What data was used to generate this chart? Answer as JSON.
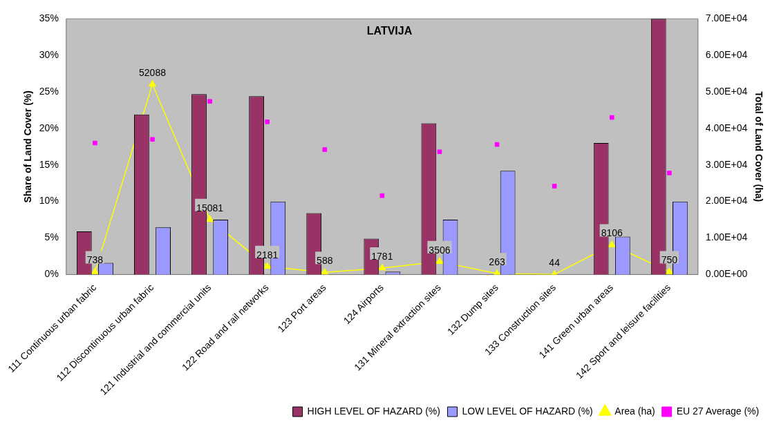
{
  "chart_data": {
    "type": "bar",
    "title": "LATVIJA",
    "ylabel": "Share of Land Cover (%)",
    "y2label": "Total of Land Cover (ha)",
    "categories": [
      "111 Continuous urban fabric",
      "112 Discontinuous urban fabric",
      "121 Industrial and commercial units",
      "122 Road and rail networks",
      "123 Port areas",
      "124 Airports",
      "131 Mineral extraction sites",
      "132 Dump sites",
      "133 Construction sites",
      "141 Green urban areas",
      "142 Sport and leisure facilities"
    ],
    "series": [
      {
        "name": "HIGH LEVEL OF HAZARD (%)",
        "color": "#993366",
        "values": [
          5.9,
          21.9,
          24.7,
          24.4,
          8.4,
          4.9,
          20.7,
          null,
          null,
          18.0,
          35.0
        ]
      },
      {
        "name": "LOW LEVEL OF HAZARD (%)",
        "color": "#9999ff",
        "values": [
          1.6,
          6.5,
          7.5,
          10.0,
          null,
          0.4,
          7.5,
          14.2,
          null,
          5.2,
          10.0
        ]
      },
      {
        "name": "Area (ha)",
        "type": "line",
        "axis": "y2",
        "color": "#ffff00",
        "marker": "triangle",
        "values": [
          738,
          52088,
          15081,
          2181,
          588,
          1781,
          3506,
          263,
          44,
          8106,
          750
        ],
        "value_labels": [
          "738",
          "52088",
          "15081",
          "2181",
          "588",
          "1781",
          "3506",
          "263",
          "44",
          "8106",
          "750"
        ]
      },
      {
        "name": "EU 27 Average (%)",
        "type": "scatter",
        "color": "#ff00ff",
        "marker": "square",
        "values": [
          18.0,
          18.5,
          23.7,
          20.9,
          17.1,
          10.8,
          16.8,
          17.8,
          12.1,
          21.5,
          13.9
        ]
      }
    ],
    "ylim": [
      0,
      35
    ],
    "yticks": [
      {
        "value": 0,
        "label": "0%"
      },
      {
        "value": 5,
        "label": "5%"
      },
      {
        "value": 10,
        "label": "10%"
      },
      {
        "value": 15,
        "label": "15%"
      },
      {
        "value": 20,
        "label": "20%"
      },
      {
        "value": 25,
        "label": "25%"
      },
      {
        "value": 30,
        "label": "30%"
      },
      {
        "value": 35,
        "label": "35%"
      }
    ],
    "y2lim": [
      0,
      70000
    ],
    "y2ticks": [
      {
        "value": 0,
        "label": "0.00E+00"
      },
      {
        "value": 10000,
        "label": "1.00E+04"
      },
      {
        "value": 20000,
        "label": "2.00E+04"
      },
      {
        "value": 30000,
        "label": "3.00E+04"
      },
      {
        "value": 40000,
        "label": "4.00E+04"
      },
      {
        "value": 50000,
        "label": "5.00E+04"
      },
      {
        "value": 60000,
        "label": "6.00E+04"
      },
      {
        "value": 70000,
        "label": "7.00E+04"
      }
    ],
    "grid": false,
    "legend": "bottom right"
  }
}
